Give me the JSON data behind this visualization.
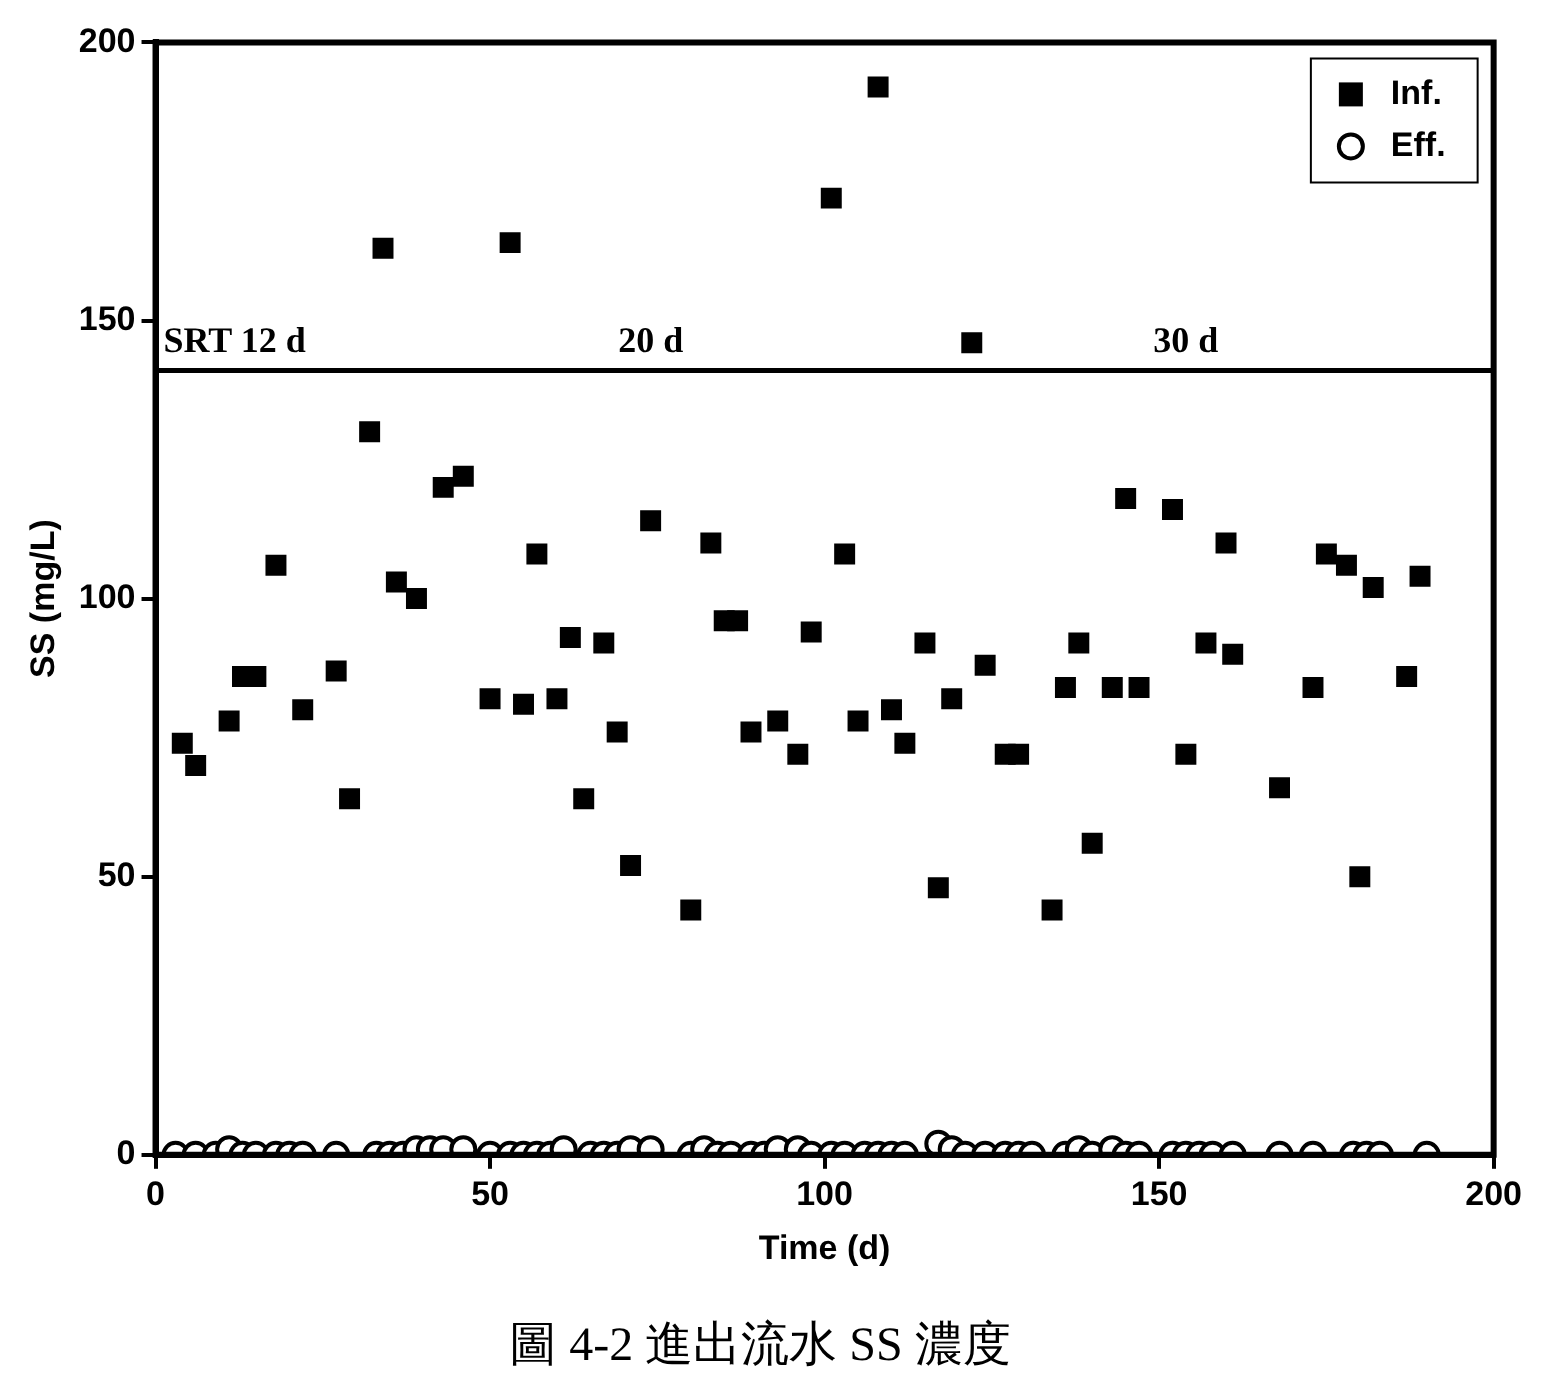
{
  "chart_data": {
    "type": "scatter",
    "title": "圖 4-2 進出流水 SS 濃度",
    "xlabel": "Time (d)",
    "ylabel": "SS (mg/L)",
    "xlim": [
      0,
      200
    ],
    "xticks": [
      0,
      50,
      100,
      150,
      200
    ],
    "ylim": [
      0,
      200
    ],
    "yticks": [
      0,
      50,
      100,
      150,
      200
    ],
    "grid": false,
    "legend": "top right",
    "series": [
      {
        "name": "Inf.",
        "color": "#000000",
        "marker": "square",
        "x": [
          4,
          6,
          11,
          13,
          15,
          18,
          22,
          27,
          29,
          32,
          34,
          36,
          39,
          43,
          46,
          50,
          53,
          55,
          57,
          60,
          62,
          64,
          67,
          69,
          71,
          74,
          80,
          83,
          85,
          87,
          89,
          93,
          96,
          98,
          101,
          103,
          105,
          108,
          110,
          112,
          115,
          117,
          119,
          122,
          124,
          127,
          129,
          134,
          136,
          138,
          140,
          143,
          145,
          147,
          152,
          154,
          157,
          160,
          161,
          168,
          173,
          175,
          178,
          180,
          182,
          187,
          189
        ],
        "values": [
          74,
          70,
          78,
          86,
          86,
          106,
          80,
          87,
          64,
          130,
          163,
          103,
          100,
          120,
          122,
          82,
          164,
          81,
          108,
          82,
          93,
          64,
          92,
          76,
          52,
          114,
          44,
          110,
          96,
          96,
          76,
          78,
          72,
          94,
          172,
          108,
          78,
          192,
          80,
          74,
          92,
          48,
          82,
          146,
          88,
          72,
          72,
          44,
          84,
          92,
          56,
          84,
          118,
          84,
          116,
          72,
          92,
          110,
          90,
          66,
          84,
          108,
          106,
          50,
          102,
          86,
          104
        ]
      },
      {
        "name": "Eff.",
        "color": "#000000",
        "marker": "circle",
        "x": [
          3,
          6,
          9,
          11,
          13,
          15,
          18,
          20,
          22,
          27,
          33,
          35,
          37,
          39,
          41,
          43,
          46,
          50,
          53,
          55,
          57,
          59,
          61,
          65,
          67,
          69,
          71,
          74,
          80,
          82,
          84,
          86,
          89,
          91,
          93,
          96,
          98,
          101,
          103,
          106,
          108,
          110,
          112,
          117,
          119,
          121,
          124,
          127,
          129,
          131,
          136,
          138,
          140,
          143,
          145,
          147,
          152,
          154,
          156,
          158,
          161,
          168,
          173,
          179,
          181,
          183,
          190
        ],
        "values": [
          0,
          0,
          0,
          1,
          0,
          0,
          0,
          0,
          0,
          0,
          0,
          0,
          0,
          1,
          1,
          1,
          1,
          0,
          0,
          0,
          0,
          0,
          1,
          0,
          0,
          0,
          1,
          1,
          0,
          1,
          0,
          0,
          0,
          0,
          1,
          1,
          0,
          0,
          0,
          0,
          0,
          0,
          0,
          2,
          1,
          0,
          0,
          0,
          0,
          0,
          0,
          1,
          0,
          1,
          0,
          0,
          0,
          0,
          0,
          0,
          0,
          0,
          0,
          0,
          0,
          0,
          0
        ]
      }
    ],
    "ref_lines": [
      {
        "axis": "y",
        "value": 141,
        "color": "#000000"
      }
    ],
    "annotations": [
      "SRT 12 d",
      "20 d",
      "30 d"
    ]
  }
}
